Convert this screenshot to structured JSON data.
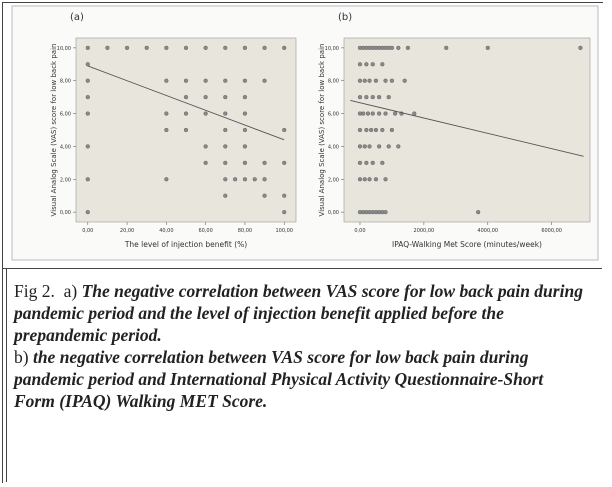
{
  "chart_data": [
    {
      "type": "scatter",
      "title": "(a)",
      "x_label": "The level of injection benefit (%)",
      "y_label": "Visual Analog Scale (VAS) score for low back pain",
      "x": [
        0,
        10,
        20,
        30,
        40,
        50,
        60,
        70,
        80,
        90,
        100,
        0,
        0,
        40,
        50,
        60,
        70,
        80,
        90,
        0,
        50,
        60,
        70,
        80,
        0,
        40,
        50,
        60,
        70,
        80,
        40,
        50,
        70,
        80,
        100,
        0,
        60,
        70,
        80,
        60,
        70,
        80,
        90,
        100,
        0,
        40,
        70,
        75,
        80,
        85,
        90,
        70,
        90,
        100,
        0,
        100
      ],
      "y": [
        10,
        10,
        10,
        10,
        10,
        10,
        10,
        10,
        10,
        10,
        10,
        9,
        8,
        8,
        8,
        8,
        8,
        8,
        8,
        7,
        7,
        7,
        7,
        7,
        6,
        6,
        6,
        6,
        6,
        6,
        5,
        5,
        5,
        5,
        5,
        4,
        4,
        4,
        4,
        3,
        3,
        3,
        3,
        3,
        2,
        2,
        2,
        2,
        2,
        2,
        2,
        1,
        1,
        1,
        0,
        0
      ],
      "color": "#8a8a8a",
      "fit_line": {
        "x": [
          0,
          100
        ],
        "y": [
          8.9,
          4.4
        ]
      },
      "xlim": [
        -6,
        106
      ],
      "ylim": [
        -0.6,
        10.6
      ],
      "xticks": [
        {
          "value": 0,
          "label": "0,00"
        },
        {
          "value": 20,
          "label": "20,00"
        },
        {
          "value": 40,
          "label": "40,00"
        },
        {
          "value": 60,
          "label": "60,00"
        },
        {
          "value": 80,
          "label": "80,00"
        },
        {
          "value": 100,
          "label": "100,00"
        }
      ],
      "yticks": [
        {
          "value": 0,
          "label": "0,00"
        },
        {
          "value": 2,
          "label": "2,00"
        },
        {
          "value": 4,
          "label": "4,00"
        },
        {
          "value": 6,
          "label": "6,00"
        },
        {
          "value": 8,
          "label": "8,00"
        },
        {
          "value": 10,
          "label": "10,00"
        }
      ]
    },
    {
      "type": "scatter",
      "title": "(b)",
      "x_label": "IPAQ-Walking Met Score (minutes/week)",
      "y_label": "Visual Analog Scale (VAS) score for low back pain",
      "x": [
        0,
        100,
        200,
        300,
        400,
        500,
        600,
        700,
        800,
        900,
        1000,
        1200,
        1500,
        2700,
        4000,
        6900,
        0,
        200,
        400,
        700,
        0,
        150,
        300,
        500,
        800,
        1000,
        1400,
        0,
        200,
        400,
        600,
        900,
        0,
        100,
        250,
        400,
        600,
        800,
        1100,
        1300,
        1700,
        0,
        200,
        350,
        500,
        700,
        1000,
        0,
        150,
        300,
        600,
        900,
        1200,
        0,
        200,
        400,
        700,
        0,
        150,
        300,
        500,
        800,
        0,
        100,
        200,
        300,
        400,
        500,
        600,
        700,
        800,
        3700
      ],
      "y": [
        10,
        10,
        10,
        10,
        10,
        10,
        10,
        10,
        10,
        10,
        10,
        10,
        10,
        10,
        10,
        10,
        9,
        9,
        9,
        9,
        8,
        8,
        8,
        8,
        8,
        8,
        8,
        7,
        7,
        7,
        7,
        7,
        6,
        6,
        6,
        6,
        6,
        6,
        6,
        6,
        6,
        5,
        5,
        5,
        5,
        5,
        5,
        4,
        4,
        4,
        4,
        4,
        4,
        3,
        3,
        3,
        3,
        2,
        2,
        2,
        2,
        2,
        0,
        0,
        0,
        0,
        0,
        0,
        0,
        0,
        0,
        0
      ],
      "color": "#8a8a8a",
      "fit_line": {
        "x": [
          -300,
          7000
        ],
        "y": [
          6.8,
          3.4
        ]
      },
      "xlim": [
        -500,
        7200
      ],
      "ylim": [
        -0.6,
        10.6
      ],
      "xticks": [
        {
          "value": 0,
          "label": "0,00"
        },
        {
          "value": 2000,
          "label": "2000,00"
        },
        {
          "value": 4000,
          "label": "4000,00"
        },
        {
          "value": 6000,
          "label": "6000,00"
        }
      ],
      "yticks": [
        {
          "value": 0,
          "label": "0,00"
        },
        {
          "value": 2,
          "label": "2,00"
        },
        {
          "value": 4,
          "label": "4,00"
        },
        {
          "value": 6,
          "label": "6,00"
        },
        {
          "value": 8,
          "label": "8,00"
        },
        {
          "value": 10,
          "label": "10,00"
        }
      ]
    }
  ],
  "caption": {
    "label": "Fig 2.",
    "a_marker": "a)",
    "a_text": "The negative correlation between VAS score for low back pain during pandemic period and the level of injection benefit applied before the prepandemic period.",
    "b_marker": "b)",
    "b_text": "the negative correlation between VAS score for low back pain during pandemic period and International Physical Activity Questionnaire-Short Form (IPAQ) Walking MET Score."
  }
}
